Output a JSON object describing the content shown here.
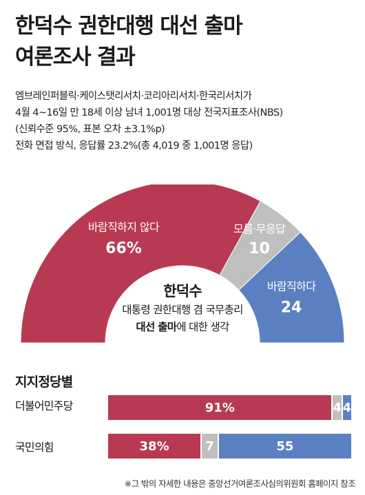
{
  "title": {
    "line1": "한덕수 권한대행 대선 출마",
    "line2": "여론조사 결과"
  },
  "survey_info": [
    "엠브레인퍼블릭·케이스탯리서치·코리아리서치·한국리서치가",
    "4월 4~16일 만 18세 이상 남녀 1,001명 대상 전국지표조사(NBS)",
    "(신뢰수준 95%, 표본 오차 ±3.1%p)",
    "전화 면접 방식, 응답률 23.2%(총 4,019 중 1,001명 응답)"
  ],
  "colors": {
    "red": "#b83a52",
    "gray": "#bfbfbf",
    "blue": "#5b80c2"
  },
  "chart_data": [
    {
      "type": "pie",
      "title": "",
      "center_label": {
        "name": "한덕수",
        "line2": "대통령 권한대행 겸 국무총리",
        "line3_bold": "대선 출마",
        "line3_rest": "에 대한 생각"
      },
      "slices": [
        {
          "label": "바람직하지 않다",
          "value": 66,
          "value_label": "66%",
          "color": "#b83a52"
        },
        {
          "label": "모름·무응답",
          "value": 10,
          "value_label": "10",
          "color": "#bfbfbf"
        },
        {
          "label": "바람직하다",
          "value": 24,
          "value_label": "24",
          "color": "#5b80c2"
        }
      ]
    },
    {
      "type": "bar",
      "title": "지지정당별",
      "stacked": true,
      "orientation": "horizontal",
      "categories": [
        "더불어민주당",
        "국민의힘"
      ],
      "series": [
        {
          "key": "not_desirable",
          "values": [
            91,
            38
          ],
          "labels": [
            "91%",
            "38%"
          ],
          "color": "#b83a52"
        },
        {
          "key": "unknown",
          "values": [
            4,
            7
          ],
          "labels": [
            "4",
            "7"
          ],
          "color": "#bfbfbf"
        },
        {
          "key": "desirable",
          "values": [
            4,
            55
          ],
          "labels": [
            "4",
            "55"
          ],
          "color": "#5b80c2"
        }
      ]
    }
  ],
  "footnote": "※그 밖의 자세한 내용은 중앙선거여론조사심의위원회 홈페이지 참조"
}
